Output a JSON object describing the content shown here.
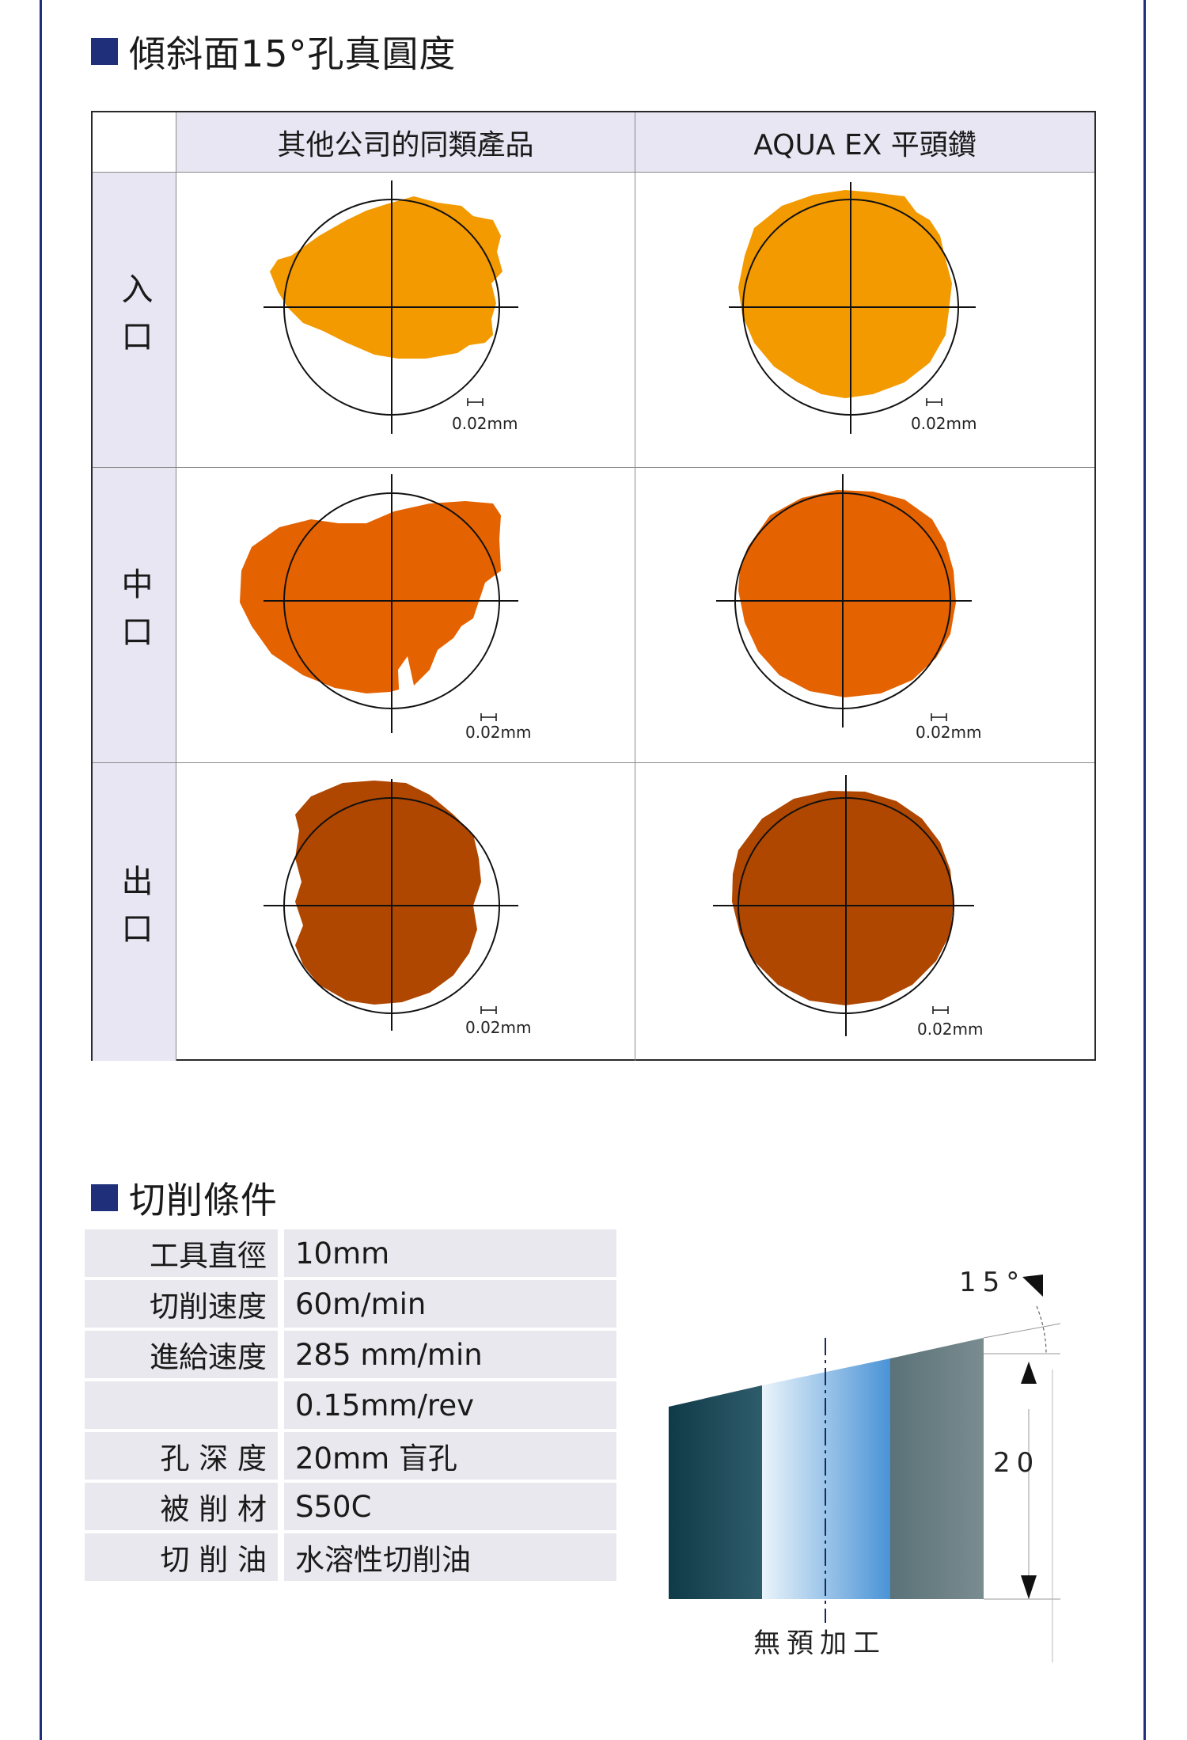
{
  "section1": {
    "title": "傾斜面15°孔真圓度"
  },
  "roundness_table": {
    "columns": [
      "其他公司的同類產品",
      "AQUA EX 平頭鑽"
    ],
    "rows": [
      {
        "label": "入口",
        "scale": [
          "0.02mm",
          "0.02mm"
        ]
      },
      {
        "label": "中口",
        "scale": [
          "0.02mm",
          "0.02mm"
        ]
      },
      {
        "label": "出口",
        "scale": [
          "0.02mm",
          "0.02mm"
        ]
      }
    ],
    "colors": {
      "entry": "#f39a00",
      "middle": "#e56200",
      "exit": "#b04700"
    }
  },
  "section2": {
    "title": "切削條件"
  },
  "conditions": [
    {
      "key": "工具直徑",
      "value": "10mm"
    },
    {
      "key": "切削速度",
      "value": "60m/min"
    },
    {
      "key": "進給速度",
      "value": "285 mm/min"
    },
    {
      "key": "",
      "value": "0.15mm/rev"
    },
    {
      "key": "孔 深 度",
      "value": "20mm 盲孔"
    },
    {
      "key": "被 削 材",
      "value": "S50C"
    },
    {
      "key": "切 削 油",
      "value": "水溶性切削油"
    }
  ],
  "diagram": {
    "angle_label": "15°",
    "depth_label": "20",
    "caption": "無預加工"
  }
}
